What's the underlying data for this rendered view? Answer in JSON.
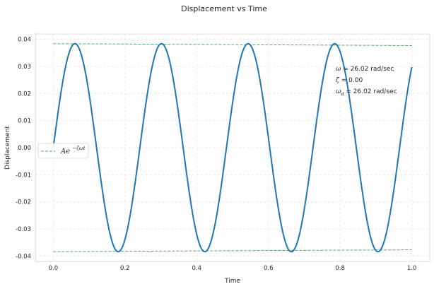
{
  "chart_data": {
    "type": "line",
    "title": "Displacement vs Time",
    "xlabel": "Time",
    "ylabel": "Displacement",
    "xlim": [
      -0.05,
      1.05
    ],
    "ylim": [
      -0.042,
      0.042
    ],
    "x_ticks": [
      0.0,
      0.2,
      0.4,
      0.6,
      0.8,
      1.0
    ],
    "x_tick_labels": [
      "0.0",
      "0.2",
      "0.4",
      "0.6",
      "0.8",
      "1.0"
    ],
    "y_ticks": [
      -0.04,
      -0.03,
      -0.02,
      -0.01,
      0.0,
      0.01,
      0.02,
      0.03,
      0.04
    ],
    "y_tick_labels": [
      "-0.04",
      "-0.03",
      "-0.02",
      "-0.01",
      "0.00",
      "0.01",
      "0.02",
      "0.03",
      "0.04"
    ],
    "grid": true,
    "legend_placement": "center-left",
    "series": [
      {
        "role": "displacement",
        "color": "#1f77b4",
        "style": "solid",
        "amplitude": 0.0384,
        "omega": 26.02,
        "zeta": 0.0,
        "x_range": [
          0,
          1
        ]
      },
      {
        "name": "Ae^{-ζωt}",
        "role": "envelope",
        "color": "#55a868",
        "style": "dashed",
        "x": [
          0,
          1
        ],
        "upper": [
          0.0384,
          0.0377
        ],
        "lower": [
          -0.0384,
          -0.0377
        ]
      }
    ],
    "legend": {
      "entries": [
        {
          "label_base": "Ae",
          "label_sup": "−ζωt",
          "color": "#55a868"
        }
      ]
    },
    "annotations": [
      {
        "sym": "ω",
        "sub": "",
        "text": " = 26.02 rad/sec"
      },
      {
        "sym": "ζ",
        "sub": "",
        "text": " = 0.00"
      },
      {
        "sym": "ω",
        "sub": "d",
        "text": " = 26.02 rad/sec"
      }
    ]
  }
}
